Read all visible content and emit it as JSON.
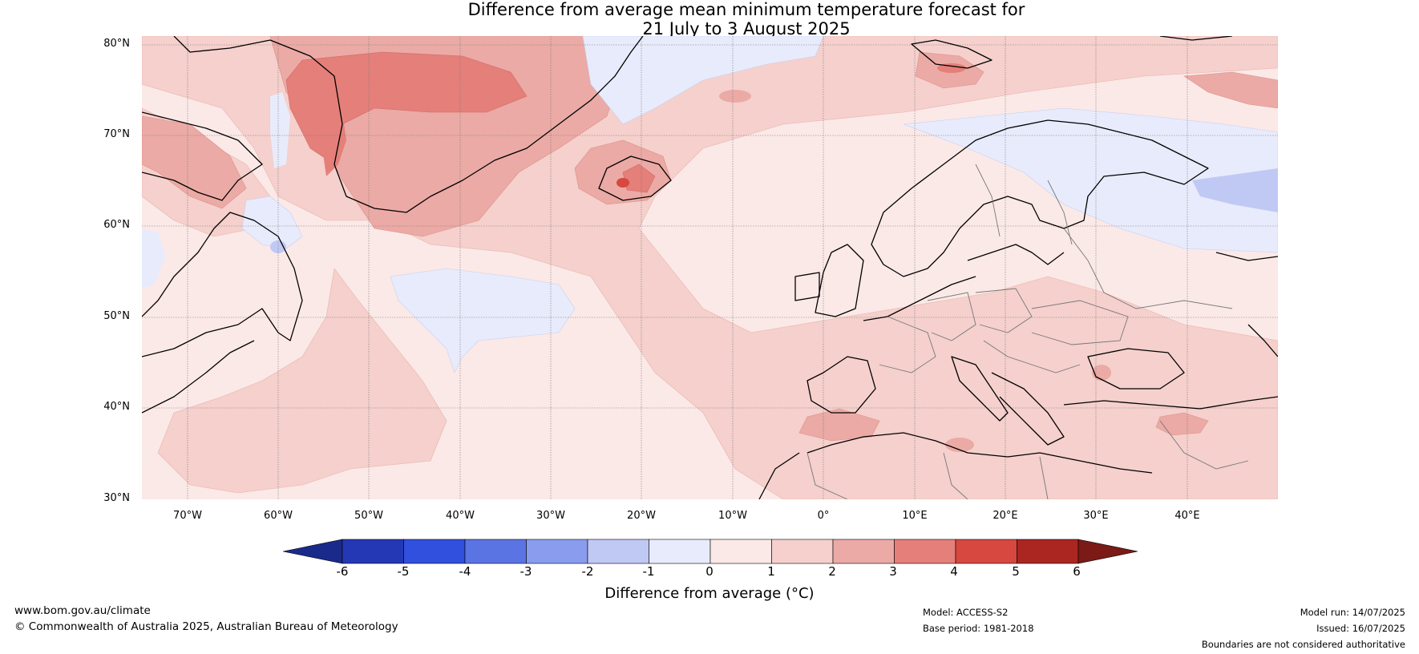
{
  "title": {
    "line1": "Difference from average mean minimum temperature forecast for",
    "line2": "21 July to 3 August 2025"
  },
  "map": {
    "lat_labels": [
      "80°N",
      "70°N",
      "60°N",
      "50°N",
      "40°N",
      "30°N"
    ],
    "lon_labels": [
      "70°W",
      "60°W",
      "50°W",
      "40°W",
      "30°W",
      "20°W",
      "10°W",
      "0°",
      "10°E",
      "20°E",
      "30°E",
      "40°E"
    ],
    "lat_range": [
      30,
      81
    ],
    "lon_range": [
      -75,
      50
    ],
    "grid": true,
    "anomaly_colors": {
      "-6": "#1a2a8a",
      "-5": "#2438b5",
      "-4": "#3050dd",
      "-3": "#5a74e4",
      "-2": "#8a9ced",
      "-1": "#c0c9f4",
      "0": "#e8ebfb",
      "1": "#fbe9e7",
      "2": "#f5d0cc",
      "3": "#ebaaa5",
      "4": "#e47f7a",
      "5": "#d64840",
      "6": "#ac2621"
    }
  },
  "colorbar": {
    "ticks": [
      "-6",
      "-5",
      "-4",
      "-3",
      "-2",
      "-1",
      "0",
      "1",
      "2",
      "3",
      "4",
      "5",
      "6"
    ],
    "label": "Difference from average (°C)",
    "colors": [
      "#2438b5",
      "#3050dd",
      "#5a74e4",
      "#8a9ced",
      "#c0c9f4",
      "#e8ebfb",
      "#fbe9e7",
      "#f5d0cc",
      "#ebaaa5",
      "#e47f7a",
      "#d64840",
      "#ac2621"
    ],
    "under_color": "#1a2a8a",
    "over_color": "#7b1a16"
  },
  "footer": {
    "website": "www.bom.gov.au/climate",
    "copyright": "© Commonwealth of Australia 2025, Australian Bureau of Meteorology",
    "model": "Model: ACCESS-S2",
    "base_period": "Base period: 1981-2018",
    "model_run": "Model run: 14/07/2025",
    "issued": "Issued: 16/07/2025",
    "disclaimer": "Boundaries are not considered authoritative"
  }
}
